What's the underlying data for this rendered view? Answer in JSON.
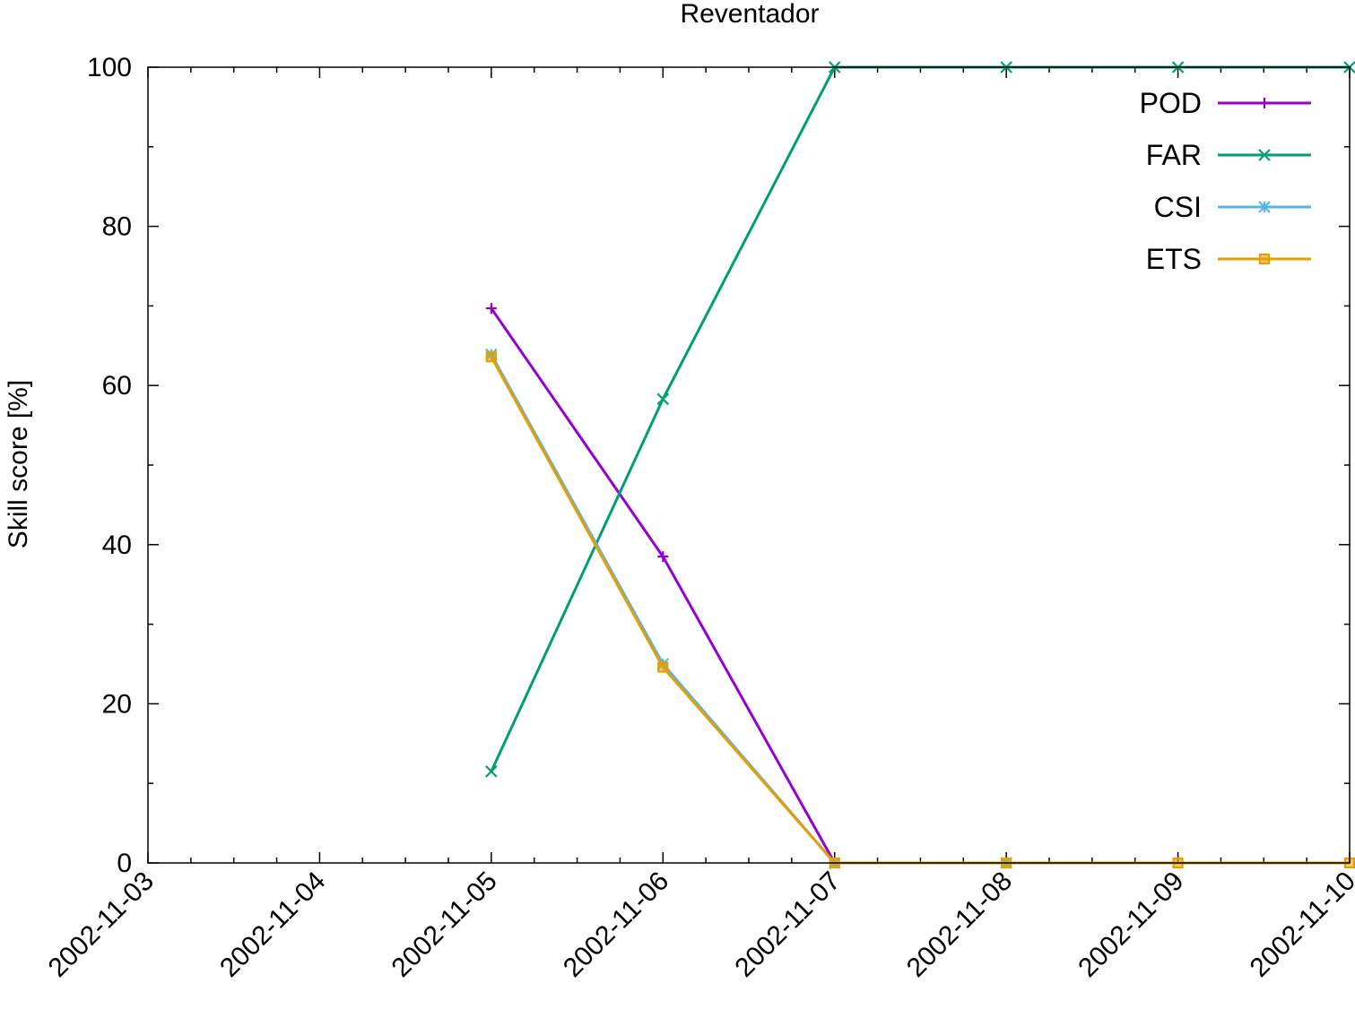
{
  "chart_data": {
    "type": "line",
    "title": "Reventador",
    "xlabel": "",
    "ylabel": "Skill score [%]",
    "x": [
      "2002-11-05",
      "2002-11-06",
      "2002-11-07",
      "2002-11-08",
      "2002-11-09",
      "2002-11-10"
    ],
    "xticks": [
      "2002-11-03",
      "2002-11-04",
      "2002-11-05",
      "2002-11-06",
      "2002-11-07",
      "2002-11-08",
      "2002-11-09",
      "2002-11-10"
    ],
    "xlim": [
      "2002-11-03",
      "2002-11-10"
    ],
    "ylim": [
      0,
      100
    ],
    "yticks": [
      0,
      20,
      40,
      60,
      80,
      100
    ],
    "grid": false,
    "legend": "top-right",
    "series": [
      {
        "name": "POD",
        "color": "#9400d3",
        "marker": "plus",
        "points": [
          [
            "2002-11-05",
            69.7
          ],
          [
            "2002-11-06",
            38.5
          ],
          [
            "2002-11-07",
            0
          ]
        ]
      },
      {
        "name": "FAR",
        "color": "#009e73",
        "marker": "cross",
        "points": [
          [
            "2002-11-05",
            11.5
          ],
          [
            "2002-11-06",
            58.3
          ],
          [
            "2002-11-07",
            100
          ],
          [
            "2002-11-08",
            100
          ],
          [
            "2002-11-09",
            100
          ],
          [
            "2002-11-10",
            100
          ]
        ]
      },
      {
        "name": "CSI",
        "color": "#56b4e9",
        "marker": "star",
        "points": [
          [
            "2002-11-05",
            63.9
          ],
          [
            "2002-11-06",
            25
          ],
          [
            "2002-11-07",
            0
          ],
          [
            "2002-11-08",
            0
          ]
        ]
      },
      {
        "name": "ETS",
        "color": "#e69f00",
        "marker": "square",
        "points": [
          [
            "2002-11-05",
            63.6
          ],
          [
            "2002-11-06",
            24.6
          ],
          [
            "2002-11-07",
            0
          ],
          [
            "2002-11-08",
            0
          ],
          [
            "2002-11-09",
            0
          ],
          [
            "2002-11-10",
            0
          ]
        ]
      }
    ]
  }
}
